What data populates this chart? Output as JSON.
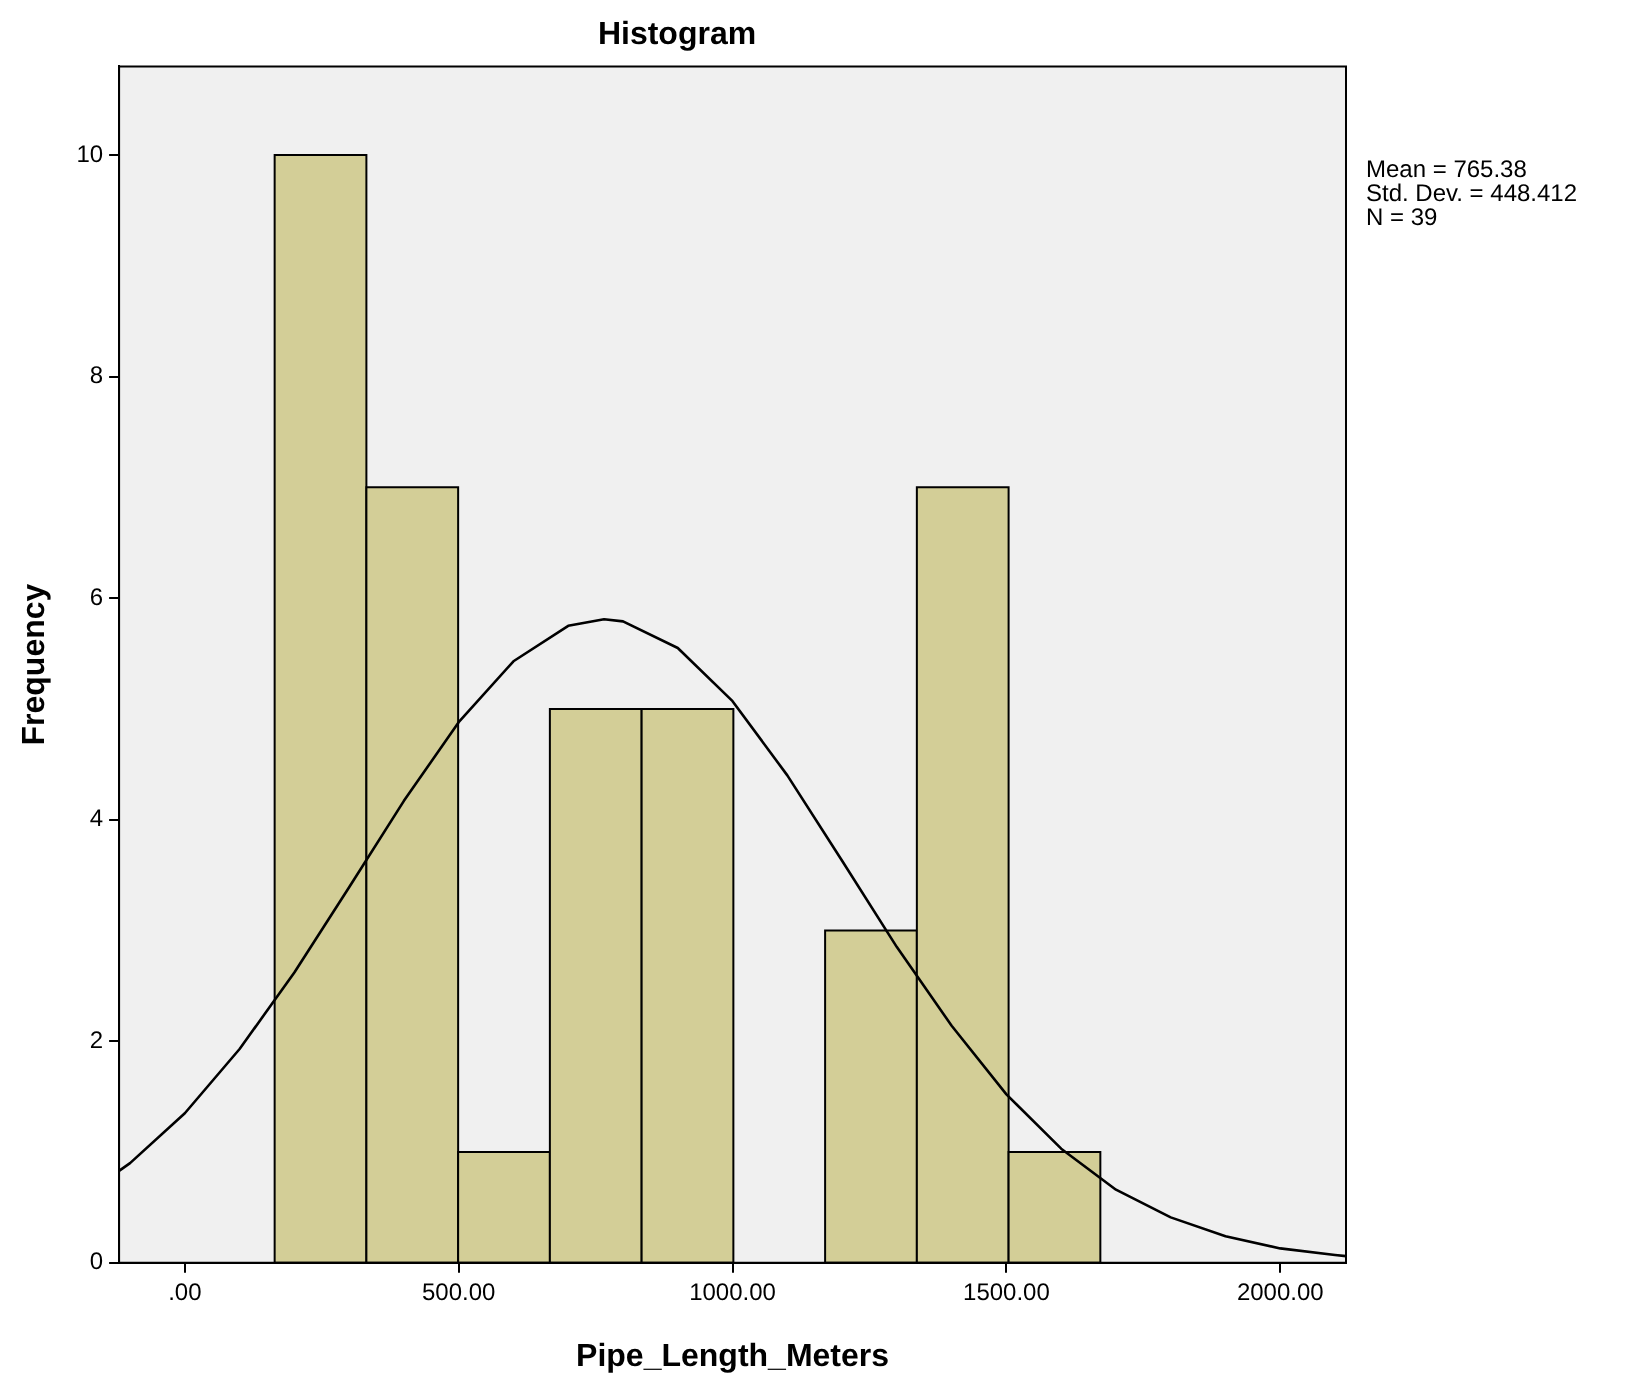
{
  "chart_data": {
    "type": "histogram",
    "title": "Histogram",
    "xlabel": "Pipe_Length_Meters",
    "ylabel": "Frequency",
    "bins": [
      164,
      331.5,
      499,
      666.5,
      834,
      1001.5,
      1169,
      1336.5,
      1504,
      1671.5
    ],
    "values": [
      10,
      7,
      1,
      5,
      5,
      0,
      3,
      7,
      1
    ],
    "color": "#d3ce97",
    "series": [
      {
        "type": "line",
        "color": "#000000",
        "x": [
          -120,
          -100,
          0,
          100,
          200,
          300,
          400,
          500,
          600,
          700,
          765.38,
          800,
          900,
          1000,
          1100,
          1200,
          1300,
          1400,
          1500,
          1600,
          1700,
          1800,
          1900,
          2000,
          2100,
          2120
        ],
        "values": [
          0.83,
          0.9,
          1.35,
          1.93,
          2.62,
          3.39,
          4.17,
          4.88,
          5.43,
          5.75,
          5.81,
          5.79,
          5.55,
          5.07,
          4.4,
          3.63,
          2.85,
          2.14,
          1.52,
          1.03,
          0.66,
          0.41,
          0.24,
          0.13,
          0.07,
          0.06
        ]
      }
    ],
    "xlim": [
      -120,
      2120
    ],
    "xticks": [
      {
        "value": 0,
        "label": ".00"
      },
      {
        "value": 500,
        "label": "500.00"
      },
      {
        "value": 1000,
        "label": "1000.00"
      },
      {
        "value": 1500,
        "label": "1500.00"
      },
      {
        "value": 2000,
        "label": "2000.00"
      }
    ],
    "ylim": [
      0,
      10.8
    ],
    "yticks": [
      0,
      2,
      4,
      6,
      8,
      10
    ],
    "grid": false,
    "legend": false,
    "marker": "none",
    "annotations": [
      "Mean = 765.38",
      "Std. Dev. = 448.412",
      "N = 39"
    ]
  }
}
